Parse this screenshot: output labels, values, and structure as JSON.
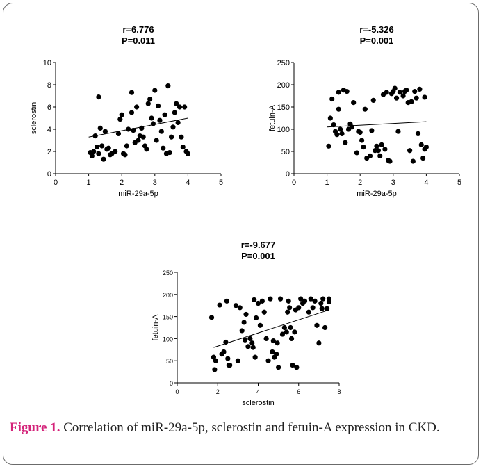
{
  "chart_data": [
    {
      "type": "scatter",
      "stat_r": "r=6.776",
      "stat_p": "P=0.011",
      "xlabel": "miR-29a-5p",
      "ylabel": "sclerostin",
      "xlim": [
        0,
        5
      ],
      "ylim": [
        0,
        10
      ],
      "xticks": [
        "0",
        "1",
        "2",
        "3",
        "4",
        "5"
      ],
      "yticks": [
        "0",
        "2",
        "4",
        "6",
        "8",
        "10"
      ],
      "trend": [
        [
          1.0,
          3.3
        ],
        [
          4.0,
          5.0
        ]
      ],
      "points": [
        [
          1.05,
          1.9
        ],
        [
          1.1,
          1.6
        ],
        [
          1.15,
          2.0
        ],
        [
          1.2,
          3.4
        ],
        [
          1.25,
          2.4
        ],
        [
          1.3,
          6.9
        ],
        [
          1.3,
          1.8
        ],
        [
          1.35,
          4.1
        ],
        [
          1.4,
          2.5
        ],
        [
          1.45,
          1.3
        ],
        [
          1.5,
          3.8
        ],
        [
          1.55,
          2.2
        ],
        [
          1.6,
          2.3
        ],
        [
          1.65,
          1.7
        ],
        [
          1.7,
          1.8
        ],
        [
          1.8,
          2.0
        ],
        [
          1.9,
          3.6
        ],
        [
          1.95,
          4.9
        ],
        [
          2.0,
          5.3
        ],
        [
          2.05,
          1.8
        ],
        [
          2.1,
          1.7
        ],
        [
          2.15,
          2.5
        ],
        [
          2.2,
          4.0
        ],
        [
          2.3,
          7.3
        ],
        [
          2.3,
          5.5
        ],
        [
          2.35,
          3.9
        ],
        [
          2.4,
          2.8
        ],
        [
          2.45,
          6.0
        ],
        [
          2.5,
          3.0
        ],
        [
          2.55,
          3.4
        ],
        [
          2.6,
          4.1
        ],
        [
          2.65,
          3.3
        ],
        [
          2.7,
          2.5
        ],
        [
          2.75,
          2.2
        ],
        [
          2.8,
          6.3
        ],
        [
          2.85,
          6.7
        ],
        [
          2.9,
          5.0
        ],
        [
          2.95,
          4.5
        ],
        [
          3.0,
          7.5
        ],
        [
          3.05,
          3.0
        ],
        [
          3.1,
          6.1
        ],
        [
          3.15,
          4.8
        ],
        [
          3.2,
          3.8
        ],
        [
          3.25,
          2.3
        ],
        [
          3.3,
          5.3
        ],
        [
          3.35,
          1.8
        ],
        [
          3.4,
          7.9
        ],
        [
          3.45,
          1.9
        ],
        [
          3.5,
          3.3
        ],
        [
          3.55,
          4.2
        ],
        [
          3.6,
          5.5
        ],
        [
          3.65,
          6.3
        ],
        [
          3.7,
          4.6
        ],
        [
          3.75,
          6.0
        ],
        [
          3.8,
          3.3
        ],
        [
          3.85,
          2.4
        ],
        [
          3.9,
          6.0
        ],
        [
          3.95,
          2.0
        ],
        [
          4.0,
          1.8
        ]
      ]
    },
    {
      "type": "scatter",
      "stat_r": "r=-5.326",
      "stat_p": "P=0.001",
      "xlabel": "miR-29a-5p",
      "ylabel": "fetuin-A",
      "xlim": [
        0,
        5
      ],
      "ylim": [
        0,
        250
      ],
      "xticks": [
        "0",
        "1",
        "2",
        "3",
        "4",
        "5"
      ],
      "yticks": [
        "0",
        "50",
        "100",
        "150",
        "200",
        "250"
      ],
      "trend": [
        [
          1.0,
          105
        ],
        [
          4.0,
          117
        ]
      ],
      "points": [
        [
          1.05,
          62
        ],
        [
          1.1,
          125
        ],
        [
          1.15,
          168
        ],
        [
          1.2,
          110
        ],
        [
          1.25,
          95
        ],
        [
          1.3,
          88
        ],
        [
          1.35,
          183
        ],
        [
          1.35,
          145
        ],
        [
          1.4,
          100
        ],
        [
          1.45,
          90
        ],
        [
          1.5,
          188
        ],
        [
          1.55,
          70
        ],
        [
          1.6,
          185
        ],
        [
          1.65,
          100
        ],
        [
          1.7,
          112
        ],
        [
          1.75,
          105
        ],
        [
          1.8,
          160
        ],
        [
          1.9,
          47
        ],
        [
          1.95,
          95
        ],
        [
          2.0,
          93
        ],
        [
          2.05,
          75
        ],
        [
          2.1,
          60
        ],
        [
          2.15,
          145
        ],
        [
          2.2,
          35
        ],
        [
          2.3,
          40
        ],
        [
          2.35,
          97
        ],
        [
          2.4,
          165
        ],
        [
          2.45,
          52
        ],
        [
          2.5,
          62
        ],
        [
          2.55,
          52
        ],
        [
          2.6,
          40
        ],
        [
          2.65,
          65
        ],
        [
          2.7,
          178
        ],
        [
          2.75,
          55
        ],
        [
          2.8,
          183
        ],
        [
          2.85,
          30
        ],
        [
          2.9,
          28
        ],
        [
          2.95,
          180
        ],
        [
          3.0,
          185
        ],
        [
          3.05,
          192
        ],
        [
          3.1,
          170
        ],
        [
          3.15,
          95
        ],
        [
          3.2,
          183
        ],
        [
          3.3,
          175
        ],
        [
          3.35,
          185
        ],
        [
          3.4,
          188
        ],
        [
          3.45,
          160
        ],
        [
          3.5,
          52
        ],
        [
          3.55,
          162
        ],
        [
          3.6,
          28
        ],
        [
          3.65,
          185
        ],
        [
          3.7,
          170
        ],
        [
          3.75,
          90
        ],
        [
          3.8,
          190
        ],
        [
          3.85,
          65
        ],
        [
          3.9,
          35
        ],
        [
          3.95,
          172
        ],
        [
          3.95,
          55
        ],
        [
          4.0,
          60
        ]
      ]
    },
    {
      "type": "scatter",
      "stat_r": "r=-9.677",
      "stat_p": "P=0.001",
      "xlabel": "sclerostin",
      "ylabel": "fetuin-A",
      "xlim": [
        0,
        8
      ],
      "ylim": [
        0,
        250
      ],
      "xticks": [
        "0",
        "2",
        "4",
        "6",
        "8"
      ],
      "yticks": [
        "0",
        "50",
        "100",
        "150",
        "200",
        "250"
      ],
      "trend": [
        [
          1.8,
          80
        ],
        [
          7.5,
          165
        ]
      ],
      "points": [
        [
          1.7,
          148
        ],
        [
          1.8,
          58
        ],
        [
          1.85,
          30
        ],
        [
          1.9,
          50
        ],
        [
          2.1,
          176
        ],
        [
          2.2,
          65
        ],
        [
          2.3,
          70
        ],
        [
          2.4,
          92
        ],
        [
          2.45,
          185
        ],
        [
          2.5,
          55
        ],
        [
          2.55,
          40
        ],
        [
          2.6,
          40
        ],
        [
          2.9,
          175
        ],
        [
          3.0,
          50
        ],
        [
          3.1,
          170
        ],
        [
          3.2,
          118
        ],
        [
          3.3,
          137
        ],
        [
          3.35,
          97
        ],
        [
          3.4,
          155
        ],
        [
          3.5,
          82
        ],
        [
          3.6,
          100
        ],
        [
          3.7,
          90
        ],
        [
          3.75,
          80
        ],
        [
          3.8,
          188
        ],
        [
          3.85,
          58
        ],
        [
          3.9,
          147
        ],
        [
          4.0,
          180
        ],
        [
          4.1,
          130
        ],
        [
          4.2,
          185
        ],
        [
          4.3,
          160
        ],
        [
          4.4,
          100
        ],
        [
          4.5,
          50
        ],
        [
          4.6,
          190
        ],
        [
          4.7,
          70
        ],
        [
          4.75,
          95
        ],
        [
          4.8,
          58
        ],
        [
          4.9,
          65
        ],
        [
          4.95,
          90
        ],
        [
          5.0,
          35
        ],
        [
          5.1,
          190
        ],
        [
          5.2,
          110
        ],
        [
          5.3,
          125
        ],
        [
          5.4,
          115
        ],
        [
          5.45,
          160
        ],
        [
          5.5,
          185
        ],
        [
          5.55,
          170
        ],
        [
          5.6,
          125
        ],
        [
          5.65,
          100
        ],
        [
          5.7,
          40
        ],
        [
          5.8,
          115
        ],
        [
          5.85,
          165
        ],
        [
          5.9,
          35
        ],
        [
          6.0,
          170
        ],
        [
          6.1,
          190
        ],
        [
          6.2,
          180
        ],
        [
          6.3,
          185
        ],
        [
          6.5,
          160
        ],
        [
          6.6,
          190
        ],
        [
          6.7,
          170
        ],
        [
          6.8,
          185
        ],
        [
          6.9,
          130
        ],
        [
          7.0,
          90
        ],
        [
          7.1,
          180
        ],
        [
          7.15,
          168
        ],
        [
          7.2,
          190
        ],
        [
          7.3,
          125
        ],
        [
          7.4,
          168
        ],
        [
          7.5,
          190
        ],
        [
          7.5,
          183
        ]
      ]
    }
  ],
  "caption": {
    "label": "Figure 1.",
    "text": " Correlation of miR-29a-5p, sclerostin and fetuin-A expression in CKD."
  }
}
